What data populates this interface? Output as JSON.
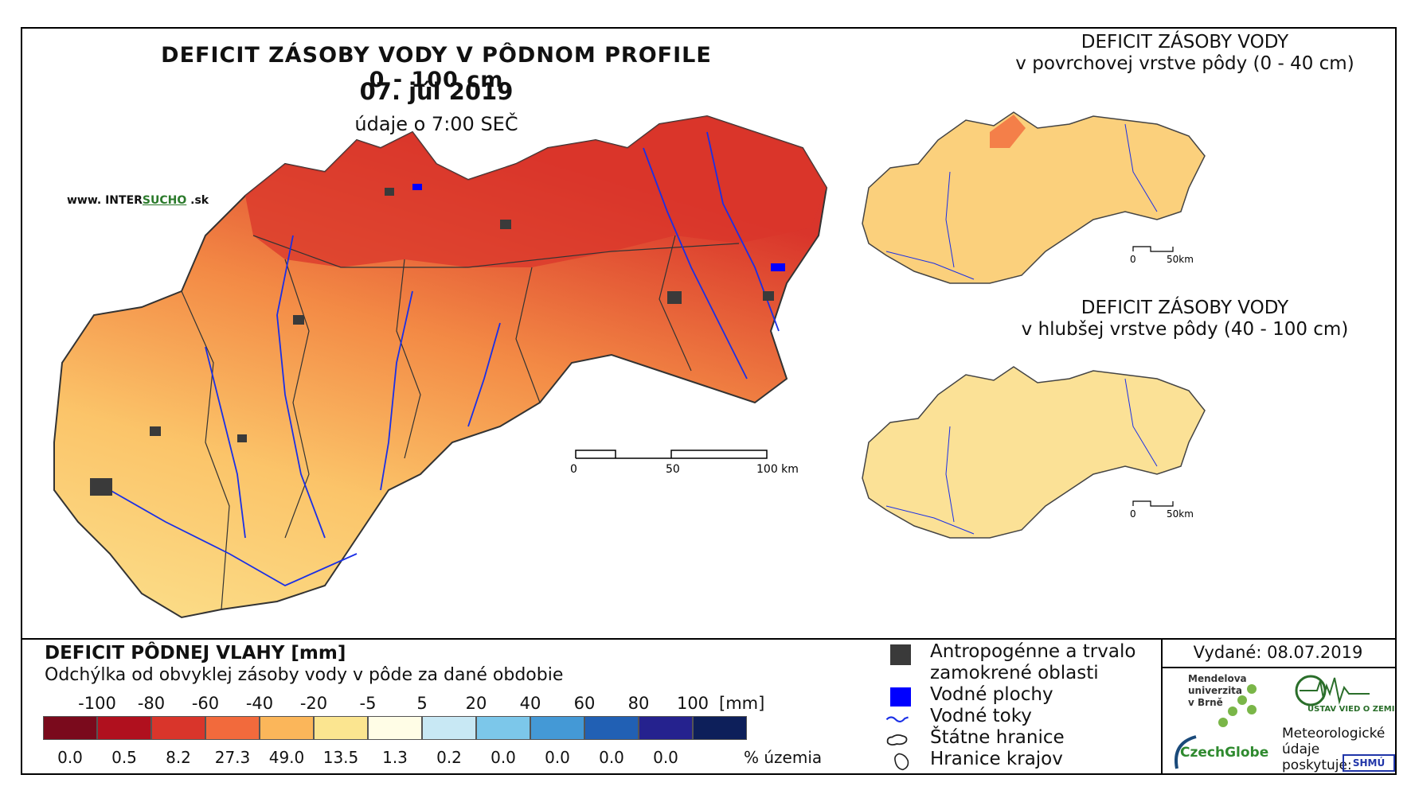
{
  "main_map": {
    "title": "DEFICIT ZÁSOBY VODY V PÔDNOM PROFILE 0 - 100 cm",
    "date": "07. júl 2019",
    "time_note": "údaje o 7:00 SEČ",
    "website_prefix": "www. INTER",
    "website_highlight": "SUCHO",
    "website_suffix": " .sk",
    "scale": {
      "labels": [
        "0",
        "50",
        "100 km"
      ]
    }
  },
  "inset_top": {
    "title_line1": "DEFICIT ZÁSOBY VODY",
    "title_line2": "v povrchovej vrstve pôdy (0 - 40 cm)",
    "scale": {
      "labels": [
        "0",
        "50km"
      ]
    }
  },
  "inset_bottom": {
    "title_line1": "DEFICIT ZÁSOBY VODY",
    "title_line2": "v hlubšej vrstve pôdy (40 - 100 cm)",
    "scale": {
      "labels": [
        "0",
        "50km"
      ]
    }
  },
  "legend": {
    "title": "DEFICIT PÔDNEJ VLAHY [mm]",
    "subtitle": "Odchýlka od obvyklej zásoby vody v pôde za dané obdobie",
    "class_labels": [
      "-100",
      "-80",
      "-60",
      "-40",
      "-20",
      "-5",
      "5",
      "20",
      "40",
      "60",
      "80",
      "100"
    ],
    "unit_label": "[mm]",
    "colors": [
      "#7a0a1c",
      "#b0101e",
      "#d9352b",
      "#f26a3c",
      "#fbb65a",
      "#fbe590",
      "#fffde6",
      "#c8e8f4",
      "#7cc7ea",
      "#4499d6",
      "#2160b4",
      "#25228e",
      "#0d1f5a"
    ],
    "percentages": [
      "0.0",
      "0.5",
      "8.2",
      "27.3",
      "49.0",
      "13.5",
      "1.3",
      "0.2",
      "0.0",
      "0.0",
      "0.0",
      "0.0"
    ],
    "percent_label": "% územia"
  },
  "symbols": {
    "anthropogenic_line1": "Antropogénne a trvalo",
    "anthropogenic_line2": "zamokrené oblasti",
    "water_bodies": "Vodné plochy",
    "rivers": "Vodné toky",
    "state_border": "Štátne hranice",
    "region_border": "Hranice krajov",
    "colors": {
      "anthropogenic": "#3a3a3a",
      "water": "#0000ff",
      "river": "#1a2fe6"
    }
  },
  "issued": "Vydané: 08.07.2019",
  "logos": {
    "mendel_line1": "Mendelova",
    "mendel_line2": "univerzita",
    "mendel_line3": "v Brně",
    "czechglobe": "CzechGlobe",
    "ustav": "ÚSTAV VIED O ZEMI",
    "shmu": "SHMÚ"
  },
  "meteo_note_line1": "Meteorologické",
  "meteo_note_line2": "údaje",
  "meteo_note_line3": "poskytuje:"
}
